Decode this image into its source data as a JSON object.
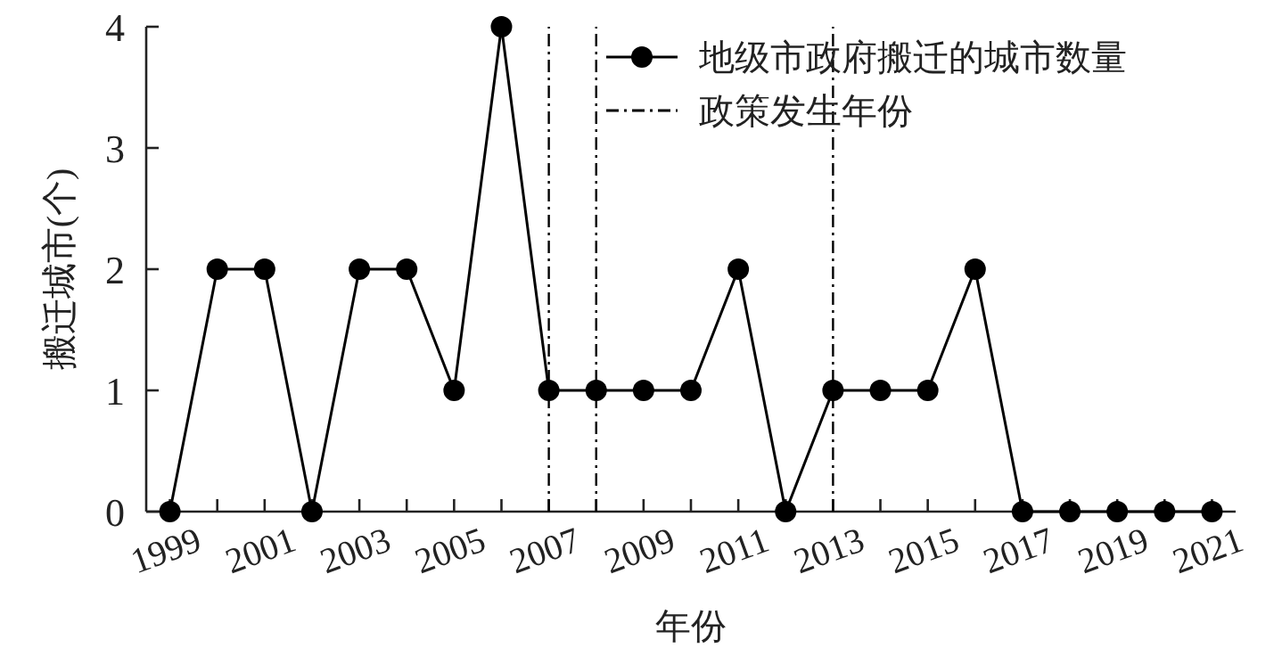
{
  "chart_data": {
    "type": "line",
    "xlabel": "年份",
    "ylabel": "搬迁城市(个)",
    "x": [
      1999,
      2000,
      2001,
      2002,
      2003,
      2004,
      2005,
      2006,
      2007,
      2008,
      2009,
      2010,
      2011,
      2012,
      2013,
      2014,
      2015,
      2016,
      2017,
      2018,
      2019,
      2020,
      2021
    ],
    "series": [
      {
        "name": "地级市政府搬迁的城市数量",
        "color": "#000000",
        "values": [
          0,
          2,
          2,
          0,
          2,
          2,
          1,
          4,
          1,
          1,
          1,
          1,
          2,
          0,
          1,
          1,
          1,
          2,
          0,
          0,
          0,
          0,
          0
        ]
      }
    ],
    "xlim": [
      1998.5,
      2021.5
    ],
    "xticks": [
      1999,
      {
        "value": 2000,
        "label": null
      },
      2001,
      {
        "value": 2002,
        "label": null
      },
      2003,
      {
        "value": 2004,
        "label": null
      },
      2005,
      {
        "value": 2006,
        "label": null
      },
      2007,
      {
        "value": 2008,
        "label": null
      },
      2009,
      {
        "value": 2010,
        "label": null
      },
      2011,
      {
        "value": 2012,
        "label": null
      },
      2013,
      {
        "value": 2014,
        "label": null
      },
      2015,
      {
        "value": 2016,
        "label": null
      },
      2017,
      {
        "value": 2018,
        "label": null
      },
      2019,
      {
        "value": 2020,
        "label": null
      },
      2021
    ],
    "ylim": [
      0,
      4
    ],
    "yticks": [
      0,
      1,
      2,
      3,
      4
    ],
    "ref_lines": [
      {
        "axis": "x",
        "value": 2007,
        "color": "#000000",
        "line_style": "dashdot"
      },
      {
        "axis": "x",
        "value": 2008,
        "color": "#000000",
        "line_style": "dashdot"
      },
      {
        "axis": "x",
        "value": 2013,
        "label": "政策发生年份",
        "color": "#000000",
        "line_style": "dashdot"
      }
    ],
    "marker": "circle",
    "line_style": "solid",
    "grid": false,
    "legend": "top right"
  }
}
